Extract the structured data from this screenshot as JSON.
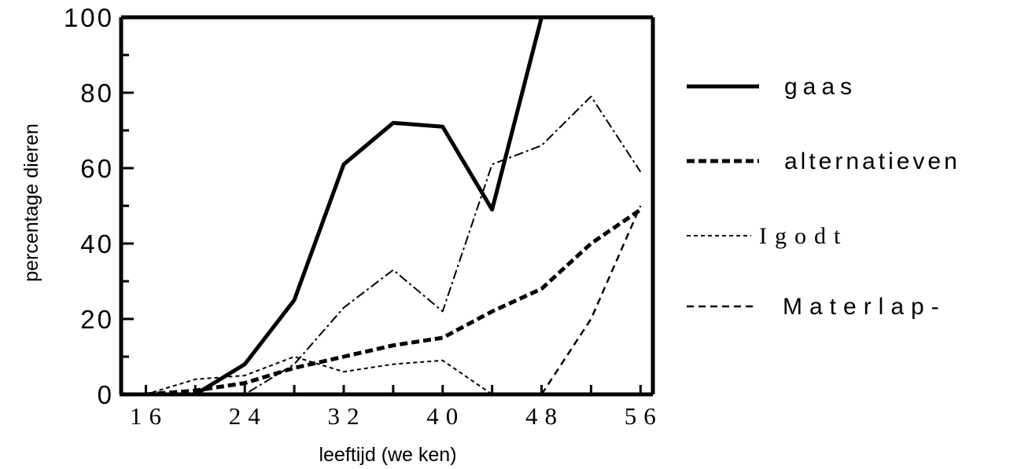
{
  "chart_data": {
    "type": "line",
    "title": "",
    "xlabel": "leeftijd (we ken)",
    "ylabel": "percentage dieren",
    "x": [
      16,
      20,
      24,
      28,
      32,
      36,
      40,
      44,
      48,
      52,
      56
    ],
    "xticks": [
      "16",
      "24",
      "32",
      "40",
      "48",
      "56"
    ],
    "yticks": [
      "0",
      "20",
      "40",
      "60",
      "80",
      "100"
    ],
    "xlim": [
      14,
      57
    ],
    "ylim": [
      0,
      100
    ],
    "grid": false,
    "legend_position": "right",
    "series": [
      {
        "name": "gaas",
        "style": "solid-thick",
        "x": [
          20,
          24,
          28,
          32,
          36,
          40,
          44,
          48
        ],
        "values": [
          0,
          8,
          25,
          61,
          72,
          71,
          49,
          100
        ]
      },
      {
        "name": "alternatieven",
        "style": "dashed-thick",
        "x": [
          16,
          20,
          24,
          28,
          32,
          36,
          40,
          44,
          48,
          52,
          56
        ],
        "values": [
          0,
          1,
          3,
          7,
          10,
          13,
          15,
          22,
          28,
          40,
          49
        ]
      },
      {
        "name": "Igodt",
        "style": "dotted-thin",
        "x": [
          16,
          20,
          24,
          28,
          32,
          36,
          40,
          44
        ],
        "values": [
          0,
          4,
          5,
          10,
          6,
          8,
          9,
          0
        ]
      },
      {
        "name": "Materlap-",
        "style": "dashed-thin",
        "x": [
          48,
          52,
          56
        ],
        "values": [
          0,
          20,
          50
        ]
      },
      {
        "name": "",
        "style": "dashdot-thin",
        "x": [
          20,
          24,
          28,
          32,
          36,
          40,
          44,
          48,
          52,
          56
        ],
        "values": [
          0,
          0,
          8,
          23,
          33,
          22,
          61,
          66,
          79,
          59
        ]
      }
    ]
  }
}
